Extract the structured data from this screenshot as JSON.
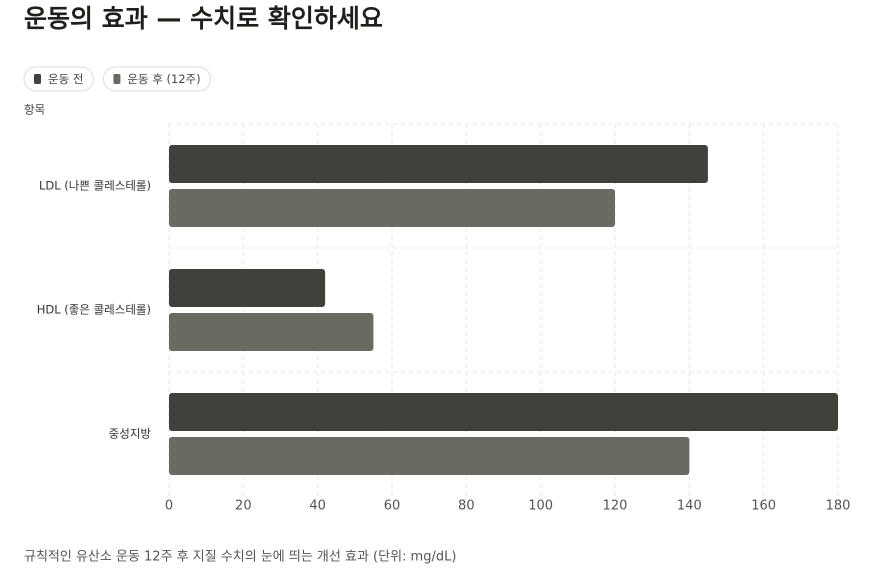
{
  "chart_data": {
    "type": "barh",
    "title": "운동의 효과 — 수치로 확인하세요",
    "y_label": "항목",
    "caption": "규칙적인 유산소 운동 12주 후 지질 수치의 눈에 띄는 개선 효과 (단위: mg/dL)",
    "categories": [
      "LDL (나쁜 콜레스테롤)",
      "HDL (좋은 콜레스테롤)",
      "중성지방"
    ],
    "series": [
      {
        "name": "운동 전",
        "color": "#41413b",
        "values": [
          145,
          42,
          180
        ]
      },
      {
        "name": "운동 후 (12주)",
        "color": "#6b6a62",
        "values": [
          120,
          55,
          140
        ]
      }
    ],
    "xlim": [
      0,
      180
    ],
    "xticks": [
      0,
      20,
      40,
      60,
      80,
      100,
      120,
      140,
      160,
      180
    ],
    "grid": true,
    "legend": "top-left"
  }
}
